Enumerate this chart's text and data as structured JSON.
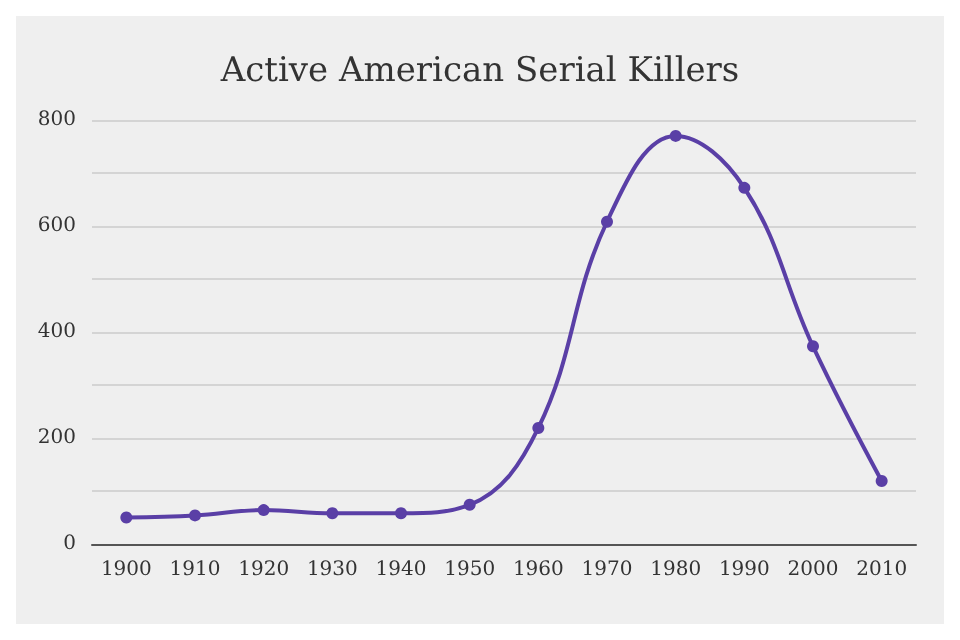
{
  "chart_data": {
    "type": "line",
    "title": "Active American Serial Killers",
    "categories": [
      "1900",
      "1910",
      "1920",
      "1930",
      "1940",
      "1950",
      "1960",
      "1970",
      "1980",
      "1990",
      "2000",
      "2010"
    ],
    "series": [
      {
        "color": "#5a3fa6",
        "values": [
          50,
          54,
          64,
          58,
          58,
          74,
          219,
          608,
          770,
          672,
          373,
          119
        ]
      }
    ],
    "ylim": [
      0,
      800
    ],
    "yticks": [
      0,
      {
        "value": 100,
        "label": null
      },
      200,
      {
        "value": 300,
        "label": null
      },
      400,
      {
        "value": 500,
        "label": null
      },
      600,
      {
        "value": 700,
        "label": null
      },
      800
    ],
    "grid": "y",
    "marker": "circle"
  }
}
